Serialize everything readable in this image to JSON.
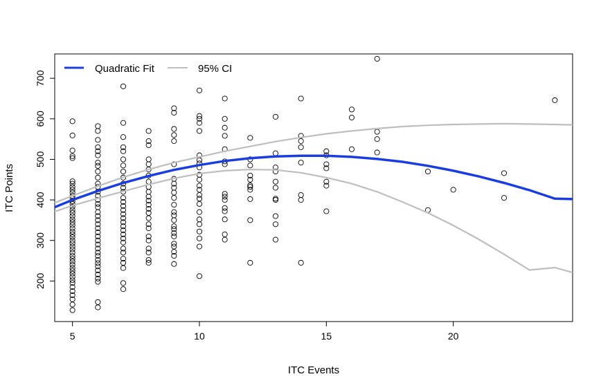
{
  "chart_data": {
    "type": "scatter",
    "title": "",
    "xlabel": "ITC Events",
    "ylabel": "ITC Points",
    "xlim": [
      4.3,
      24.7
    ],
    "ylim": [
      100,
      760
    ],
    "xticks": [
      "5",
      "10",
      "15",
      "20"
    ],
    "yticks": [
      "200",
      "300",
      "400",
      "500",
      "600",
      "700"
    ],
    "grid": false,
    "legend_position": "top-left",
    "colors": {
      "points": "#000000",
      "fit": "#1a3de0",
      "ci": "#bebebe"
    },
    "series": [
      {
        "name": "Quadratic Fit",
        "kind": "line",
        "x": [
          4.3,
          5,
          6,
          7,
          8,
          9,
          10,
          11,
          12,
          13,
          14,
          15,
          16,
          17,
          18,
          19,
          20,
          21,
          22,
          23,
          24,
          24.7
        ],
        "y": [
          382,
          400,
          422,
          442,
          459,
          474,
          486,
          496,
          503,
          507,
          509,
          509,
          506,
          501,
          494,
          484,
          472,
          458,
          442,
          424,
          403,
          402
        ]
      },
      {
        "name": "95% CI",
        "kind": "band",
        "x": [
          4.3,
          5,
          6,
          7,
          8,
          9,
          10,
          11,
          12,
          13,
          14,
          15,
          16,
          17,
          18,
          19,
          20,
          21,
          22,
          23,
          24,
          24.7
        ],
        "upper": [
          393,
          410,
          434,
          456,
          475,
          492,
          506,
          520,
          532,
          544,
          554,
          563,
          570,
          576,
          581,
          584,
          586,
          587,
          588,
          587,
          586,
          585
        ],
        "lower": [
          371,
          386,
          404,
          421,
          438,
          453,
          465,
          472,
          475,
          474,
          467,
          455,
          440,
          420,
          395,
          368,
          337,
          303,
          266,
          227,
          233,
          221
        ]
      }
    ],
    "points": [
      {
        "x": 5,
        "y": 594
      },
      {
        "x": 5,
        "y": 559
      },
      {
        "x": 5,
        "y": 522
      },
      {
        "x": 5,
        "y": 508
      },
      {
        "x": 5,
        "y": 503
      },
      {
        "x": 5,
        "y": 446
      },
      {
        "x": 5,
        "y": 440
      },
      {
        "x": 5,
        "y": 432
      },
      {
        "x": 5,
        "y": 425
      },
      {
        "x": 5,
        "y": 418
      },
      {
        "x": 5,
        "y": 410
      },
      {
        "x": 5,
        "y": 403
      },
      {
        "x": 5,
        "y": 397
      },
      {
        "x": 5,
        "y": 390
      },
      {
        "x": 5,
        "y": 383
      },
      {
        "x": 5,
        "y": 375
      },
      {
        "x": 5,
        "y": 368
      },
      {
        "x": 5,
        "y": 360
      },
      {
        "x": 5,
        "y": 352
      },
      {
        "x": 5,
        "y": 345
      },
      {
        "x": 5,
        "y": 338
      },
      {
        "x": 5,
        "y": 330
      },
      {
        "x": 5,
        "y": 322
      },
      {
        "x": 5,
        "y": 315
      },
      {
        "x": 5,
        "y": 308
      },
      {
        "x": 5,
        "y": 300
      },
      {
        "x": 5,
        "y": 293
      },
      {
        "x": 5,
        "y": 285
      },
      {
        "x": 5,
        "y": 278
      },
      {
        "x": 5,
        "y": 270
      },
      {
        "x": 5,
        "y": 262
      },
      {
        "x": 5,
        "y": 255
      },
      {
        "x": 5,
        "y": 248
      },
      {
        "x": 5,
        "y": 240
      },
      {
        "x": 5,
        "y": 232
      },
      {
        "x": 5,
        "y": 225
      },
      {
        "x": 5,
        "y": 218
      },
      {
        "x": 5,
        "y": 210
      },
      {
        "x": 5,
        "y": 202
      },
      {
        "x": 5,
        "y": 195
      },
      {
        "x": 5,
        "y": 185
      },
      {
        "x": 5,
        "y": 175
      },
      {
        "x": 5,
        "y": 165
      },
      {
        "x": 5,
        "y": 155
      },
      {
        "x": 5,
        "y": 142
      },
      {
        "x": 5,
        "y": 128
      },
      {
        "x": 6,
        "y": 582
      },
      {
        "x": 6,
        "y": 570
      },
      {
        "x": 6,
        "y": 548
      },
      {
        "x": 6,
        "y": 530
      },
      {
        "x": 6,
        "y": 520
      },
      {
        "x": 6,
        "y": 510
      },
      {
        "x": 6,
        "y": 492
      },
      {
        "x": 6,
        "y": 484
      },
      {
        "x": 6,
        "y": 470
      },
      {
        "x": 6,
        "y": 455
      },
      {
        "x": 6,
        "y": 440
      },
      {
        "x": 6,
        "y": 432
      },
      {
        "x": 6,
        "y": 420
      },
      {
        "x": 6,
        "y": 410
      },
      {
        "x": 6,
        "y": 400
      },
      {
        "x": 6,
        "y": 390
      },
      {
        "x": 6,
        "y": 382
      },
      {
        "x": 6,
        "y": 370
      },
      {
        "x": 6,
        "y": 360
      },
      {
        "x": 6,
        "y": 350
      },
      {
        "x": 6,
        "y": 340
      },
      {
        "x": 6,
        "y": 330
      },
      {
        "x": 6,
        "y": 320
      },
      {
        "x": 6,
        "y": 310
      },
      {
        "x": 6,
        "y": 300
      },
      {
        "x": 6,
        "y": 290
      },
      {
        "x": 6,
        "y": 280
      },
      {
        "x": 6,
        "y": 270
      },
      {
        "x": 6,
        "y": 262
      },
      {
        "x": 6,
        "y": 252
      },
      {
        "x": 6,
        "y": 244
      },
      {
        "x": 6,
        "y": 236
      },
      {
        "x": 6,
        "y": 226
      },
      {
        "x": 6,
        "y": 216
      },
      {
        "x": 6,
        "y": 206
      },
      {
        "x": 6,
        "y": 198
      },
      {
        "x": 6,
        "y": 148
      },
      {
        "x": 6,
        "y": 135
      },
      {
        "x": 7,
        "y": 680
      },
      {
        "x": 7,
        "y": 590
      },
      {
        "x": 7,
        "y": 555
      },
      {
        "x": 7,
        "y": 530
      },
      {
        "x": 7,
        "y": 520
      },
      {
        "x": 7,
        "y": 500
      },
      {
        "x": 7,
        "y": 485
      },
      {
        "x": 7,
        "y": 470
      },
      {
        "x": 7,
        "y": 455
      },
      {
        "x": 7,
        "y": 440
      },
      {
        "x": 7,
        "y": 430
      },
      {
        "x": 7,
        "y": 420
      },
      {
        "x": 7,
        "y": 405
      },
      {
        "x": 7,
        "y": 395
      },
      {
        "x": 7,
        "y": 385
      },
      {
        "x": 7,
        "y": 375
      },
      {
        "x": 7,
        "y": 365
      },
      {
        "x": 7,
        "y": 355
      },
      {
        "x": 7,
        "y": 345
      },
      {
        "x": 7,
        "y": 335
      },
      {
        "x": 7,
        "y": 325
      },
      {
        "x": 7,
        "y": 315
      },
      {
        "x": 7,
        "y": 305
      },
      {
        "x": 7,
        "y": 295
      },
      {
        "x": 7,
        "y": 280
      },
      {
        "x": 7,
        "y": 270
      },
      {
        "x": 7,
        "y": 255
      },
      {
        "x": 7,
        "y": 245
      },
      {
        "x": 7,
        "y": 232
      },
      {
        "x": 7,
        "y": 195
      },
      {
        "x": 7,
        "y": 180
      },
      {
        "x": 8,
        "y": 570
      },
      {
        "x": 8,
        "y": 545
      },
      {
        "x": 8,
        "y": 535
      },
      {
        "x": 8,
        "y": 500
      },
      {
        "x": 8,
        "y": 488
      },
      {
        "x": 8,
        "y": 475
      },
      {
        "x": 8,
        "y": 460
      },
      {
        "x": 8,
        "y": 445
      },
      {
        "x": 8,
        "y": 432
      },
      {
        "x": 8,
        "y": 420
      },
      {
        "x": 8,
        "y": 408
      },
      {
        "x": 8,
        "y": 398
      },
      {
        "x": 8,
        "y": 388
      },
      {
        "x": 8,
        "y": 378
      },
      {
        "x": 8,
        "y": 368
      },
      {
        "x": 8,
        "y": 355
      },
      {
        "x": 8,
        "y": 340
      },
      {
        "x": 8,
        "y": 330
      },
      {
        "x": 8,
        "y": 310
      },
      {
        "x": 8,
        "y": 300
      },
      {
        "x": 8,
        "y": 280
      },
      {
        "x": 8,
        "y": 270
      },
      {
        "x": 8,
        "y": 252
      },
      {
        "x": 8,
        "y": 245
      },
      {
        "x": 9,
        "y": 626
      },
      {
        "x": 9,
        "y": 615
      },
      {
        "x": 9,
        "y": 575
      },
      {
        "x": 9,
        "y": 560
      },
      {
        "x": 9,
        "y": 545
      },
      {
        "x": 9,
        "y": 488
      },
      {
        "x": 9,
        "y": 452
      },
      {
        "x": 9,
        "y": 440
      },
      {
        "x": 9,
        "y": 430
      },
      {
        "x": 9,
        "y": 418
      },
      {
        "x": 9,
        "y": 405
      },
      {
        "x": 9,
        "y": 388
      },
      {
        "x": 9,
        "y": 370
      },
      {
        "x": 9,
        "y": 362
      },
      {
        "x": 9,
        "y": 350
      },
      {
        "x": 9,
        "y": 335
      },
      {
        "x": 9,
        "y": 328
      },
      {
        "x": 9,
        "y": 318
      },
      {
        "x": 9,
        "y": 310
      },
      {
        "x": 9,
        "y": 292
      },
      {
        "x": 9,
        "y": 285
      },
      {
        "x": 9,
        "y": 272
      },
      {
        "x": 9,
        "y": 262
      },
      {
        "x": 9,
        "y": 242
      },
      {
        "x": 10,
        "y": 670
      },
      {
        "x": 10,
        "y": 607
      },
      {
        "x": 10,
        "y": 600
      },
      {
        "x": 10,
        "y": 590
      },
      {
        "x": 10,
        "y": 570
      },
      {
        "x": 10,
        "y": 510
      },
      {
        "x": 10,
        "y": 498
      },
      {
        "x": 10,
        "y": 490
      },
      {
        "x": 10,
        "y": 480
      },
      {
        "x": 10,
        "y": 462
      },
      {
        "x": 10,
        "y": 450
      },
      {
        "x": 10,
        "y": 435
      },
      {
        "x": 10,
        "y": 425
      },
      {
        "x": 10,
        "y": 412
      },
      {
        "x": 10,
        "y": 403
      },
      {
        "x": 10,
        "y": 390
      },
      {
        "x": 10,
        "y": 370
      },
      {
        "x": 10,
        "y": 352
      },
      {
        "x": 10,
        "y": 340
      },
      {
        "x": 10,
        "y": 322
      },
      {
        "x": 10,
        "y": 305
      },
      {
        "x": 10,
        "y": 285
      },
      {
        "x": 10,
        "y": 212
      },
      {
        "x": 11,
        "y": 650
      },
      {
        "x": 11,
        "y": 600
      },
      {
        "x": 11,
        "y": 578
      },
      {
        "x": 11,
        "y": 558
      },
      {
        "x": 11,
        "y": 525
      },
      {
        "x": 11,
        "y": 495
      },
      {
        "x": 11,
        "y": 488
      },
      {
        "x": 11,
        "y": 415
      },
      {
        "x": 11,
        "y": 408
      },
      {
        "x": 11,
        "y": 400
      },
      {
        "x": 11,
        "y": 380
      },
      {
        "x": 11,
        "y": 372
      },
      {
        "x": 11,
        "y": 352
      },
      {
        "x": 11,
        "y": 315
      },
      {
        "x": 11,
        "y": 302
      },
      {
        "x": 12,
        "y": 553
      },
      {
        "x": 12,
        "y": 500
      },
      {
        "x": 12,
        "y": 485
      },
      {
        "x": 12,
        "y": 460
      },
      {
        "x": 12,
        "y": 450
      },
      {
        "x": 12,
        "y": 436
      },
      {
        "x": 12,
        "y": 432
      },
      {
        "x": 12,
        "y": 425
      },
      {
        "x": 12,
        "y": 402
      },
      {
        "x": 12,
        "y": 350
      },
      {
        "x": 12,
        "y": 245
      },
      {
        "x": 13,
        "y": 605
      },
      {
        "x": 13,
        "y": 515
      },
      {
        "x": 13,
        "y": 480
      },
      {
        "x": 13,
        "y": 470
      },
      {
        "x": 13,
        "y": 445
      },
      {
        "x": 13,
        "y": 430
      },
      {
        "x": 13,
        "y": 403
      },
      {
        "x": 13,
        "y": 400
      },
      {
        "x": 13,
        "y": 360
      },
      {
        "x": 13,
        "y": 340
      },
      {
        "x": 13,
        "y": 302
      },
      {
        "x": 14,
        "y": 650
      },
      {
        "x": 14,
        "y": 558
      },
      {
        "x": 14,
        "y": 545
      },
      {
        "x": 14,
        "y": 530
      },
      {
        "x": 14,
        "y": 492
      },
      {
        "x": 14,
        "y": 412
      },
      {
        "x": 14,
        "y": 400
      },
      {
        "x": 14,
        "y": 245
      },
      {
        "x": 15,
        "y": 520
      },
      {
        "x": 15,
        "y": 510
      },
      {
        "x": 15,
        "y": 488
      },
      {
        "x": 15,
        "y": 478
      },
      {
        "x": 15,
        "y": 445
      },
      {
        "x": 15,
        "y": 435
      },
      {
        "x": 15,
        "y": 372
      },
      {
        "x": 16,
        "y": 623
      },
      {
        "x": 16,
        "y": 603
      },
      {
        "x": 16,
        "y": 525
      },
      {
        "x": 17,
        "y": 748
      },
      {
        "x": 17,
        "y": 568
      },
      {
        "x": 17,
        "y": 550
      },
      {
        "x": 17,
        "y": 517
      },
      {
        "x": 19,
        "y": 470
      },
      {
        "x": 19,
        "y": 375
      },
      {
        "x": 20,
        "y": 425
      },
      {
        "x": 22,
        "y": 466
      },
      {
        "x": 22,
        "y": 405
      },
      {
        "x": 24,
        "y": 646
      }
    ]
  }
}
